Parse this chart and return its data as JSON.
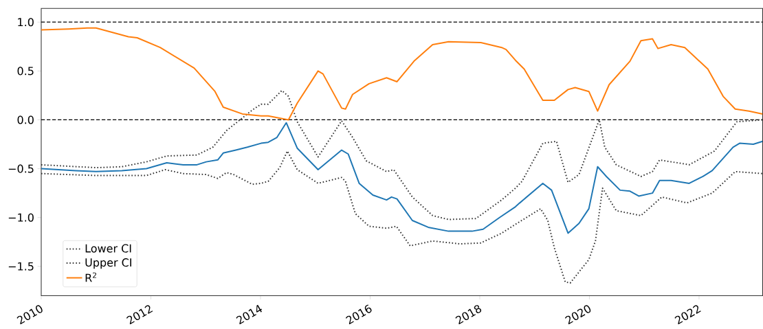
{
  "chart_data": {
    "type": "line",
    "xlim": [
      2010,
      2023.16
    ],
    "ylim": [
      -1.8,
      1.14
    ],
    "xticks": [
      2010,
      2012,
      2014,
      2016,
      2018,
      2020,
      2022
    ],
    "yticks": [
      {
        "value": -1.5,
        "label": "−1.5"
      },
      {
        "value": -1.0,
        "label": "−1.0"
      },
      {
        "value": -0.5,
        "label": "−0.5"
      },
      {
        "value": 0.0,
        "label": "0.0"
      },
      {
        "value": 0.5,
        "label": "0.5"
      },
      {
        "value": 1.0,
        "label": "1.0"
      }
    ],
    "grid": false,
    "legend": "bottom left",
    "marker": "none",
    "ref_lines": [
      {
        "axis": "y",
        "value": 0,
        "color": "#000000",
        "line_style": "dashed"
      },
      {
        "axis": "y",
        "value": 1,
        "color": "#000000",
        "line_style": "dashed"
      }
    ],
    "series": [
      {
        "color": "#1f77b4",
        "line_style": "solid",
        "x": [
          2010.0,
          2010.63,
          2011.0,
          2011.47,
          2011.92,
          2012.29,
          2012.59,
          2012.84,
          2013.01,
          2013.22,
          2013.32,
          2013.55,
          2013.76,
          2014.01,
          2014.14,
          2014.3,
          2014.47,
          2014.67,
          2015.05,
          2015.48,
          2015.6,
          2015.8,
          2016.05,
          2016.3,
          2016.39,
          2016.49,
          2016.77,
          2017.06,
          2017.43,
          2017.86,
          2018.06,
          2018.36,
          2018.65,
          2018.73,
          2019.15,
          2019.31,
          2019.61,
          2019.81,
          2019.99,
          2020.15,
          2020.31,
          2020.56,
          2020.74,
          2020.9,
          2021.15,
          2021.28,
          2021.49,
          2021.82,
          2022.07,
          2022.24,
          2022.62,
          2022.74,
          2022.99,
          2023.16
        ],
        "values": [
          -0.5,
          -0.52,
          -0.53,
          -0.52,
          -0.5,
          -0.44,
          -0.46,
          -0.46,
          -0.43,
          -0.41,
          -0.34,
          -0.31,
          -0.28,
          -0.24,
          -0.23,
          -0.18,
          -0.03,
          -0.29,
          -0.51,
          -0.31,
          -0.35,
          -0.65,
          -0.77,
          -0.82,
          -0.79,
          -0.81,
          -1.03,
          -1.1,
          -1.14,
          -1.14,
          -1.12,
          -1.0,
          -0.89,
          -0.85,
          -0.65,
          -0.72,
          -1.16,
          -1.06,
          -0.91,
          -0.48,
          -0.58,
          -0.72,
          -0.73,
          -0.78,
          -0.75,
          -0.62,
          -0.62,
          -0.65,
          -0.58,
          -0.52,
          -0.28,
          -0.24,
          -0.25,
          -0.22
        ]
      },
      {
        "name": "Lower CI",
        "color": "#333333",
        "line_style": "dotted",
        "x": [
          2010.0,
          2011.0,
          2011.92,
          2012.26,
          2012.59,
          2013.01,
          2013.22,
          2013.38,
          2013.51,
          2013.85,
          2014.01,
          2014.14,
          2014.35,
          2014.49,
          2014.67,
          2015.05,
          2015.48,
          2015.55,
          2015.73,
          2015.98,
          2016.3,
          2016.48,
          2016.73,
          2017.14,
          2017.64,
          2018.02,
          2018.4,
          2018.65,
          2019.11,
          2019.24,
          2019.36,
          2019.56,
          2019.65,
          2019.99,
          2020.11,
          2020.24,
          2020.49,
          2020.94,
          2021.32,
          2021.78,
          2022.24,
          2022.66,
          2023.16
        ],
        "values": [
          -0.55,
          -0.57,
          -0.57,
          -0.51,
          -0.55,
          -0.56,
          -0.6,
          -0.54,
          -0.56,
          -0.66,
          -0.65,
          -0.63,
          -0.49,
          -0.32,
          -0.51,
          -0.65,
          -0.59,
          -0.63,
          -0.96,
          -1.09,
          -1.11,
          -1.09,
          -1.29,
          -1.24,
          -1.27,
          -1.26,
          -1.16,
          -1.07,
          -0.91,
          -1.03,
          -1.31,
          -1.66,
          -1.67,
          -1.43,
          -1.24,
          -0.7,
          -0.93,
          -0.98,
          -0.79,
          -0.85,
          -0.75,
          -0.53,
          -0.55
        ]
      },
      {
        "name": "Upper CI",
        "color": "#333333",
        "line_style": "dotted",
        "x": [
          2010.0,
          2011.0,
          2011.47,
          2011.92,
          2012.29,
          2012.84,
          2013.13,
          2013.38,
          2013.67,
          2013.85,
          2014.01,
          2014.14,
          2014.39,
          2014.51,
          2014.67,
          2015.05,
          2015.48,
          2015.68,
          2015.93,
          2016.3,
          2016.43,
          2016.77,
          2017.14,
          2017.43,
          2017.93,
          2018.4,
          2018.65,
          2018.77,
          2019.15,
          2019.4,
          2019.61,
          2019.81,
          2020.06,
          2020.18,
          2020.28,
          2020.49,
          2020.94,
          2021.15,
          2021.28,
          2021.82,
          2022.28,
          2022.69,
          2023.16
        ],
        "values": [
          -0.46,
          -0.49,
          -0.48,
          -0.43,
          -0.37,
          -0.36,
          -0.28,
          -0.11,
          0.02,
          0.1,
          0.16,
          0.16,
          0.3,
          0.24,
          -0.02,
          -0.38,
          -0.01,
          -0.18,
          -0.42,
          -0.53,
          -0.51,
          -0.79,
          -0.98,
          -1.02,
          -1.01,
          -0.82,
          -0.7,
          -0.63,
          -0.24,
          -0.22,
          -0.64,
          -0.56,
          -0.18,
          0.0,
          -0.28,
          -0.46,
          -0.58,
          -0.53,
          -0.41,
          -0.46,
          -0.32,
          -0.02,
          0.0
        ]
      },
      {
        "name": "R$^{2}$",
        "color": "#ff7f0e",
        "line_style": "solid",
        "x": [
          2010.0,
          2010.5,
          2010.84,
          2011.0,
          2011.59,
          2011.75,
          2012.17,
          2012.79,
          2013.17,
          2013.32,
          2013.67,
          2014.01,
          2014.14,
          2014.51,
          2014.67,
          2015.05,
          2015.14,
          2015.48,
          2015.55,
          2015.68,
          2015.98,
          2016.3,
          2016.49,
          2016.8,
          2017.14,
          2017.43,
          2018.02,
          2018.4,
          2018.48,
          2018.65,
          2018.81,
          2019.15,
          2019.36,
          2019.61,
          2019.74,
          2019.99,
          2020.15,
          2020.36,
          2020.74,
          2020.94,
          2021.15,
          2021.25,
          2021.49,
          2021.74,
          2022.16,
          2022.44,
          2022.66,
          2022.91,
          2023.16
        ],
        "values": [
          0.92,
          0.93,
          0.94,
          0.94,
          0.85,
          0.84,
          0.74,
          0.53,
          0.29,
          0.13,
          0.06,
          0.04,
          0.04,
          0.0,
          0.17,
          0.5,
          0.47,
          0.12,
          0.11,
          0.26,
          0.37,
          0.43,
          0.39,
          0.6,
          0.77,
          0.8,
          0.79,
          0.74,
          0.72,
          0.61,
          0.52,
          0.2,
          0.2,
          0.31,
          0.33,
          0.29,
          0.09,
          0.36,
          0.6,
          0.81,
          0.83,
          0.73,
          0.77,
          0.74,
          0.52,
          0.24,
          0.11,
          0.09,
          0.06
        ]
      }
    ]
  }
}
